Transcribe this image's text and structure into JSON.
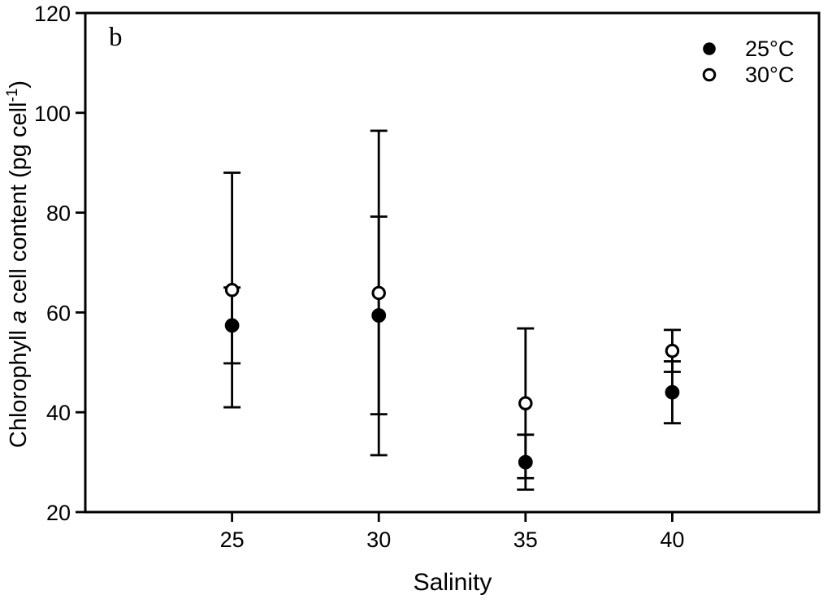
{
  "chart_data": {
    "type": "scatter",
    "panel_label": "b",
    "title": "",
    "xlabel": "Salinity",
    "ylabel": "Chlorophyll a cell content (pg cell-1)",
    "ylabel_rich": [
      {
        "t": "Chlorophyll ",
        "style": "normal"
      },
      {
        "t": "a",
        "style": "italic"
      },
      {
        "t": " cell content (pg cell",
        "style": "normal"
      },
      {
        "t": "-1",
        "style": "sup"
      },
      {
        "t": ")",
        "style": "normal"
      }
    ],
    "x": [
      25,
      30,
      35,
      40
    ],
    "xlim": [
      20,
      45
    ],
    "ylim": [
      20,
      120
    ],
    "xticks": [
      25,
      30,
      35,
      40
    ],
    "yticks": [
      20,
      40,
      60,
      80,
      100,
      120
    ],
    "grid": false,
    "legend_position": "top-right",
    "series": [
      {
        "name": "25°C",
        "marker": "filled-circle",
        "color": "#000000",
        "values": [
          57.4,
          59.4,
          30.0,
          44.0
        ],
        "errors": [
          7.6,
          19.8,
          5.5,
          6.2
        ]
      },
      {
        "name": "30°C",
        "marker": "open-circle",
        "color": "#000000",
        "values": [
          64.5,
          63.9,
          41.8,
          52.3
        ],
        "errors": [
          23.5,
          32.5,
          15.0,
          4.2
        ]
      }
    ],
    "colors": {
      "foreground": "#000000",
      "background": "#ffffff"
    }
  }
}
